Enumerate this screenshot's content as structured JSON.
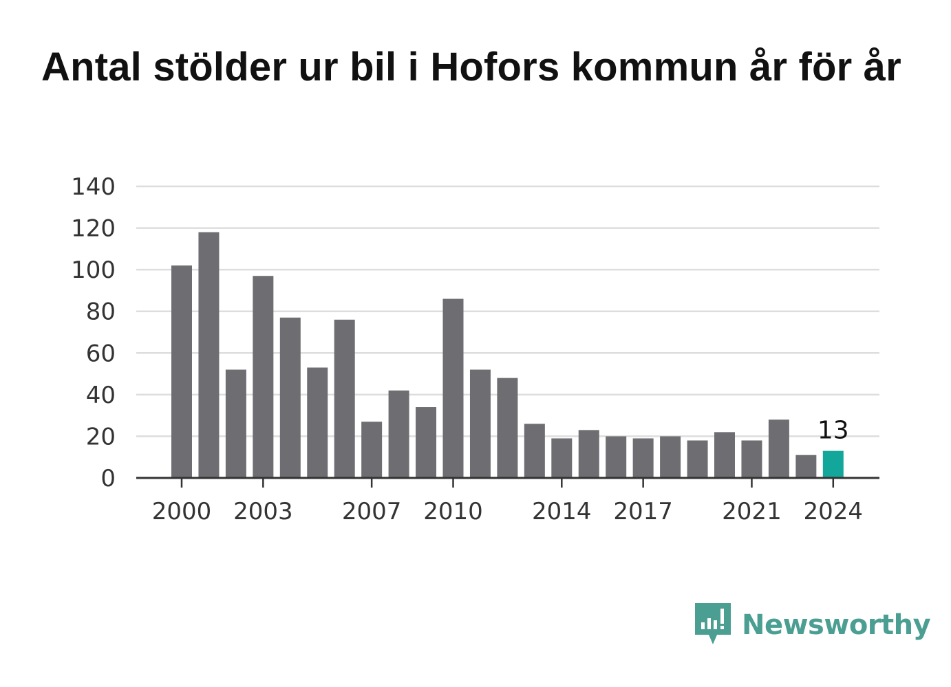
{
  "title": "Antal stölder ur bil i Hofors kommun år för år",
  "colors": {
    "bar": "#6e6d72",
    "highlight": "#13a69a",
    "grid": "#dddddd",
    "axis": "#333333",
    "brand": "#4a9e92"
  },
  "chart_data": {
    "type": "bar",
    "x": [
      2000,
      2001,
      2002,
      2003,
      2004,
      2005,
      2006,
      2007,
      2008,
      2009,
      2010,
      2011,
      2012,
      2013,
      2014,
      2015,
      2016,
      2017,
      2018,
      2019,
      2020,
      2021,
      2022,
      2023,
      2024
    ],
    "values": [
      102,
      118,
      52,
      97,
      77,
      53,
      76,
      27,
      42,
      34,
      86,
      52,
      48,
      26,
      19,
      23,
      20,
      19,
      20,
      18,
      22,
      18,
      28,
      11,
      13
    ],
    "highlight_x": 2024,
    "highlight_label": "13",
    "ylim": [
      0,
      140
    ],
    "yticks": [
      0,
      20,
      40,
      60,
      80,
      100,
      120,
      140
    ],
    "xticks": [
      2000,
      2003,
      2007,
      2010,
      2014,
      2017,
      2021,
      2024
    ],
    "grid": true,
    "xlabel": "",
    "ylabel": ""
  },
  "brand": {
    "name": "Newsworthy",
    "icon": "newsworthy-logo-icon"
  }
}
